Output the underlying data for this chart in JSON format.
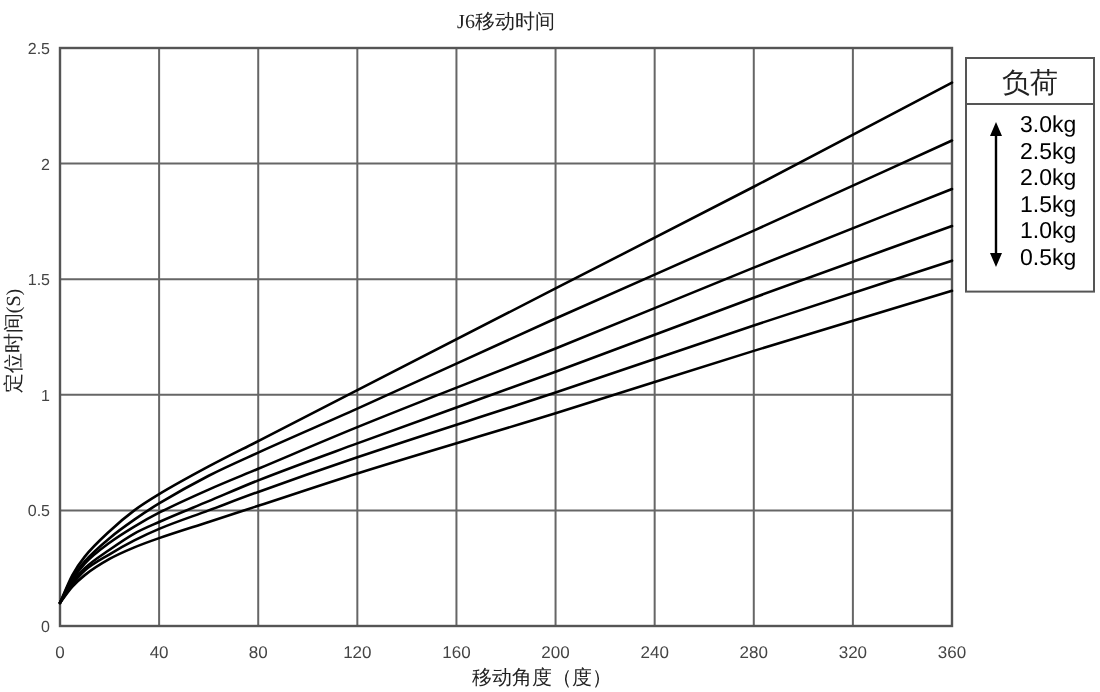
{
  "chart_data": {
    "type": "line",
    "title": "J6移动时间",
    "xlabel": "移动角度（度）",
    "ylabel": "定位时间(S)",
    "legend_title": "负荷",
    "x": [
      0,
      5,
      10,
      20,
      30,
      40,
      60,
      80,
      120,
      200,
      280,
      360
    ],
    "series": [
      {
        "name": "3.0kg",
        "color": "#000000",
        "values": [
          0.1,
          0.22,
          0.3,
          0.41,
          0.5,
          0.57,
          0.69,
          0.8,
          1.02,
          1.46,
          1.9,
          2.35
        ]
      },
      {
        "name": "2.5kg",
        "color": "#000000",
        "values": [
          0.1,
          0.21,
          0.28,
          0.38,
          0.46,
          0.53,
          0.65,
          0.75,
          0.94,
          1.33,
          1.71,
          2.1
        ]
      },
      {
        "name": "2.0kg",
        "color": "#000000",
        "values": [
          0.1,
          0.2,
          0.27,
          0.36,
          0.43,
          0.49,
          0.59,
          0.68,
          0.86,
          1.2,
          1.55,
          1.89
        ]
      },
      {
        "name": "1.5kg",
        "color": "#000000",
        "values": [
          0.1,
          0.19,
          0.25,
          0.33,
          0.4,
          0.45,
          0.54,
          0.63,
          0.79,
          1.1,
          1.42,
          1.73
        ]
      },
      {
        "name": "1.0kg",
        "color": "#000000",
        "values": [
          0.1,
          0.18,
          0.24,
          0.31,
          0.37,
          0.42,
          0.5,
          0.58,
          0.73,
          1.01,
          1.3,
          1.58
        ]
      },
      {
        "name": "0.5kg",
        "color": "#000000",
        "values": [
          0.1,
          0.17,
          0.22,
          0.29,
          0.34,
          0.38,
          0.45,
          0.52,
          0.66,
          0.92,
          1.19,
          1.45
        ]
      }
    ],
    "xlim": [
      0,
      360
    ],
    "xticks": [
      0,
      40,
      80,
      120,
      160,
      200,
      240,
      280,
      320,
      360
    ],
    "ylim": [
      0,
      2.5
    ],
    "yticks": [
      0,
      0.5,
      1,
      1.5,
      2,
      2.5
    ],
    "grid": true,
    "legend": "right"
  }
}
